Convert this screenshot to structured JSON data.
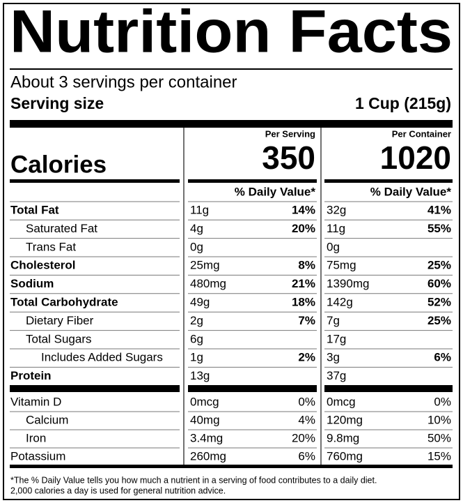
{
  "header": {
    "title": "Nutrition Facts",
    "servings": "About 3 servings per container",
    "serving_size_label": "Serving size",
    "serving_size": "1 Cup (215g)"
  },
  "columns": {
    "per_serving": "Per Serving",
    "per_container": "Per Container",
    "daily_value": "% Daily Value*"
  },
  "calories": {
    "label": "Calories",
    "per_serving": "350",
    "per_container": "1020"
  },
  "nutrients": [
    {
      "name": "Total Fat",
      "serving": "11g",
      "serving_dv": "14%",
      "container": "32g",
      "container_dv": "41%"
    },
    {
      "name": "Saturated Fat",
      "serving": "4g",
      "serving_dv": "20%",
      "container": "11g",
      "container_dv": "55%"
    },
    {
      "name": "Trans Fat",
      "serving": "0g",
      "container": "0g"
    },
    {
      "name": "Cholesterol",
      "serving": "25mg",
      "serving_dv": "8%",
      "container": "75mg",
      "container_dv": "25%"
    },
    {
      "name": "Sodium",
      "serving": "480mg",
      "serving_dv": "21%",
      "container": "1390mg",
      "container_dv": "60%"
    },
    {
      "name": "Total Carbohydrate",
      "serving": "49g",
      "serving_dv": "18%",
      "container": "142g",
      "container_dv": "52%"
    },
    {
      "name": "Dietary Fiber",
      "serving": "2g",
      "serving_dv": "7%",
      "container": "7g",
      "container_dv": "25%"
    },
    {
      "name": "Total Sugars",
      "serving": "6g",
      "container": "17g"
    },
    {
      "name": "Includes Added Sugars",
      "serving": "1g",
      "serving_dv": "2%",
      "container": "3g",
      "container_dv": "6%"
    },
    {
      "name": "Protein",
      "serving": "13g",
      "container": "37g"
    }
  ],
  "vitamins": [
    {
      "name": "Vitamin D",
      "serving": "0mcg",
      "serving_dv": "0%",
      "container": "0mcg",
      "container_dv": "0%"
    },
    {
      "name": "Calcium",
      "serving": "40mg",
      "serving_dv": "4%",
      "container": "120mg",
      "container_dv": "10%"
    },
    {
      "name": "Iron",
      "serving": "3.4mg",
      "serving_dv": "20%",
      "container": "9.8mg",
      "container_dv": "50%"
    },
    {
      "name": "Potassium",
      "serving": "260mg",
      "serving_dv": "6%",
      "container": "760mg",
      "container_dv": "15%"
    }
  ],
  "footnote": [
    "*The % Daily Value tells you how much a nutrient in a serving of food contributes to a daily diet.",
    "2,000 calories a day is used for general nutrition advice."
  ]
}
